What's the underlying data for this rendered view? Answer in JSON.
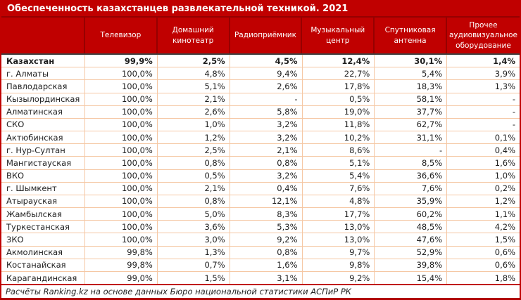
{
  "title": "Обеспеченность казахстанцев развлекательной техникой. 2021",
  "footer": "Расчёты Ranking.kz на основе данных Бюро национальной статистики АСПиР РК",
  "colors": {
    "header_bg": "#C00000",
    "header_divider": "#960000",
    "body_grid": "#F5C7A3",
    "header_bottom_rule": "#3F3F3F",
    "text": "#1E1E1E",
    "header_text": "#FFFFFF"
  },
  "table": {
    "corner_label": "",
    "columns": [
      "Телевизор",
      "Домашний кинотеатр",
      "Радиоприёмник",
      "Музыкальный центр",
      "Спутниковая антенна",
      "Прочее аудиовизуальное оборудование"
    ],
    "rows": [
      {
        "region": "Казахстан",
        "bold": true,
        "values": [
          "99,9%",
          "2,5%",
          "4,5%",
          "12,4%",
          "30,1%",
          "1,4%"
        ]
      },
      {
        "region": "г. Алматы",
        "bold": false,
        "values": [
          "100,0%",
          "4,8%",
          "9,4%",
          "22,7%",
          "5,4%",
          "3,9%"
        ]
      },
      {
        "region": "Павлодарская",
        "bold": false,
        "values": [
          "100,0%",
          "5,1%",
          "2,6%",
          "17,8%",
          "18,3%",
          "1,3%"
        ]
      },
      {
        "region": "Кызылординская",
        "bold": false,
        "values": [
          "100,0%",
          "2,1%",
          "-",
          "0,5%",
          "58,1%",
          "-"
        ]
      },
      {
        "region": "Алматинская",
        "bold": false,
        "values": [
          "100,0%",
          "2,6%",
          "5,8%",
          "19,0%",
          "37,7%",
          "-"
        ]
      },
      {
        "region": "СКО",
        "bold": false,
        "values": [
          "100,0%",
          "1,0%",
          "3,2%",
          "11,8%",
          "62,7%",
          "-"
        ]
      },
      {
        "region": "Актюбинская",
        "bold": false,
        "values": [
          "100,0%",
          "1,2%",
          "3,2%",
          "10,2%",
          "31,1%",
          "0,1%"
        ]
      },
      {
        "region": "г. Нур-Султан",
        "bold": false,
        "values": [
          "100,0%",
          "2,5%",
          "2,1%",
          "8,6%",
          "-",
          "0,4%"
        ]
      },
      {
        "region": "Мангистауская",
        "bold": false,
        "values": [
          "100,0%",
          "0,8%",
          "0,8%",
          "5,1%",
          "8,5%",
          "1,6%"
        ]
      },
      {
        "region": "ВКО",
        "bold": false,
        "values": [
          "100,0%",
          "0,5%",
          "3,2%",
          "5,4%",
          "36,6%",
          "1,0%"
        ]
      },
      {
        "region": "г. Шымкент",
        "bold": false,
        "values": [
          "100,0%",
          "2,1%",
          "0,4%",
          "7,6%",
          "7,6%",
          "0,2%"
        ]
      },
      {
        "region": "Атырауская",
        "bold": false,
        "values": [
          "100,0%",
          "0,8%",
          "12,1%",
          "4,8%",
          "35,9%",
          "1,2%"
        ]
      },
      {
        "region": "Жамбылская",
        "bold": false,
        "values": [
          "100,0%",
          "5,0%",
          "8,3%",
          "17,7%",
          "60,2%",
          "1,1%"
        ]
      },
      {
        "region": "Туркестанская",
        "bold": false,
        "values": [
          "100,0%",
          "3,6%",
          "5,3%",
          "13,0%",
          "48,5%",
          "4,2%"
        ]
      },
      {
        "region": "ЗКО",
        "bold": false,
        "values": [
          "100,0%",
          "3,0%",
          "9,2%",
          "13,0%",
          "47,6%",
          "1,5%"
        ]
      },
      {
        "region": "Акмолинская",
        "bold": false,
        "values": [
          "99,8%",
          "1,3%",
          "0,8%",
          "9,7%",
          "52,9%",
          "0,6%"
        ]
      },
      {
        "region": "Костанайская",
        "bold": false,
        "values": [
          "99,8%",
          "0,7%",
          "1,6%",
          "9,8%",
          "39,8%",
          "0,6%"
        ]
      },
      {
        "region": "Карагандинская",
        "bold": false,
        "values": [
          "99,0%",
          "1,5%",
          "3,1%",
          "9,2%",
          "15,4%",
          "1,8%"
        ]
      }
    ]
  },
  "chart_data": {
    "type": "table",
    "title": "Обеспеченность казахстанцев развлекательной техникой. 2021",
    "unit": "%",
    "columns": [
      "Телевизор",
      "Домашний кинотеатр",
      "Радиоприёмник",
      "Музыкальный центр",
      "Спутниковая антенна",
      "Прочее аудиовизуальное оборудование"
    ],
    "rows": [
      {
        "region": "Казахстан",
        "values": [
          99.9,
          2.5,
          4.5,
          12.4,
          30.1,
          1.4
        ]
      },
      {
        "region": "г. Алматы",
        "values": [
          100.0,
          4.8,
          9.4,
          22.7,
          5.4,
          3.9
        ]
      },
      {
        "region": "Павлодарская",
        "values": [
          100.0,
          5.1,
          2.6,
          17.8,
          18.3,
          1.3
        ]
      },
      {
        "region": "Кызылординская",
        "values": [
          100.0,
          2.1,
          null,
          0.5,
          58.1,
          null
        ]
      },
      {
        "region": "Алматинская",
        "values": [
          100.0,
          2.6,
          5.8,
          19.0,
          37.7,
          null
        ]
      },
      {
        "region": "СКО",
        "values": [
          100.0,
          1.0,
          3.2,
          11.8,
          62.7,
          null
        ]
      },
      {
        "region": "Актюбинская",
        "values": [
          100.0,
          1.2,
          3.2,
          10.2,
          31.1,
          0.1
        ]
      },
      {
        "region": "г. Нур-Султан",
        "values": [
          100.0,
          2.5,
          2.1,
          8.6,
          null,
          0.4
        ]
      },
      {
        "region": "Мангистауская",
        "values": [
          100.0,
          0.8,
          0.8,
          5.1,
          8.5,
          1.6
        ]
      },
      {
        "region": "ВКО",
        "values": [
          100.0,
          0.5,
          3.2,
          5.4,
          36.6,
          1.0
        ]
      },
      {
        "region": "г. Шымкент",
        "values": [
          100.0,
          2.1,
          0.4,
          7.6,
          7.6,
          0.2
        ]
      },
      {
        "region": "Атырауская",
        "values": [
          100.0,
          0.8,
          12.1,
          4.8,
          35.9,
          1.2
        ]
      },
      {
        "region": "Жамбылская",
        "values": [
          100.0,
          5.0,
          8.3,
          17.7,
          60.2,
          1.1
        ]
      },
      {
        "region": "Туркестанская",
        "values": [
          100.0,
          3.6,
          5.3,
          13.0,
          48.5,
          4.2
        ]
      },
      {
        "region": "ЗКО",
        "values": [
          100.0,
          3.0,
          9.2,
          13.0,
          47.6,
          1.5
        ]
      },
      {
        "region": "Акмолинская",
        "values": [
          99.8,
          1.3,
          0.8,
          9.7,
          52.9,
          0.6
        ]
      },
      {
        "region": "Костанайская",
        "values": [
          99.8,
          0.7,
          1.6,
          9.8,
          39.8,
          0.6
        ]
      },
      {
        "region": "Карагандинская",
        "values": [
          99.0,
          1.5,
          3.1,
          9.2,
          15.4,
          1.8
        ]
      }
    ],
    "source": "Расчёты Ranking.kz на основе данных Бюро национальной статистики АСПиР РК"
  }
}
